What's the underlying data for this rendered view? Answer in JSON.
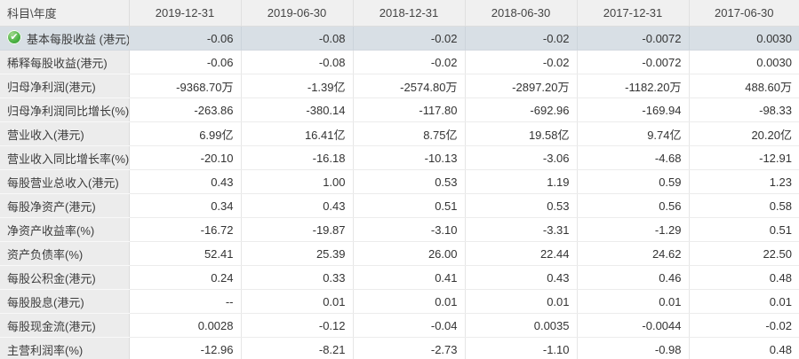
{
  "icons": {
    "check": "✔"
  },
  "colors": {
    "selected_row_bg": "#d8dfe5",
    "label_column_bg": "#ececec",
    "header_bg": "#f0f0f0",
    "check_green": "#4cb244"
  },
  "table": {
    "corner_label": "科目\\年度",
    "columns": [
      "2019-12-31",
      "2019-06-30",
      "2018-12-31",
      "2018-06-30",
      "2017-12-31",
      "2017-06-30"
    ],
    "rows": [
      {
        "label": "基本每股收益 (港元)",
        "selected": true,
        "icon": "check",
        "values": [
          "-0.06",
          "-0.08",
          "-0.02",
          "-0.02",
          "-0.0072",
          "0.0030"
        ]
      },
      {
        "label": "稀释每股收益(港元)",
        "values": [
          "-0.06",
          "-0.08",
          "-0.02",
          "-0.02",
          "-0.0072",
          "0.0030"
        ]
      },
      {
        "label": "归母净利润(港元)",
        "values": [
          "-9368.70万",
          "-1.39亿",
          "-2574.80万",
          "-2897.20万",
          "-1182.20万",
          "488.60万"
        ]
      },
      {
        "label": "归母净利润同比增长(%)",
        "values": [
          "-263.86",
          "-380.14",
          "-117.80",
          "-692.96",
          "-169.94",
          "-98.33"
        ]
      },
      {
        "label": "营业收入(港元)",
        "values": [
          "6.99亿",
          "16.41亿",
          "8.75亿",
          "19.58亿",
          "9.74亿",
          "20.20亿"
        ]
      },
      {
        "label": "营业收入同比增长率(%)",
        "values": [
          "-20.10",
          "-16.18",
          "-10.13",
          "-3.06",
          "-4.68",
          "-12.91"
        ]
      },
      {
        "label": "每股营业总收入(港元)",
        "values": [
          "0.43",
          "1.00",
          "0.53",
          "1.19",
          "0.59",
          "1.23"
        ]
      },
      {
        "label": "每股净资产(港元)",
        "values": [
          "0.34",
          "0.43",
          "0.51",
          "0.53",
          "0.56",
          "0.58"
        ]
      },
      {
        "label": "净资产收益率(%)",
        "values": [
          "-16.72",
          "-19.87",
          "-3.10",
          "-3.31",
          "-1.29",
          "0.51"
        ]
      },
      {
        "label": "资产负债率(%)",
        "values": [
          "52.41",
          "25.39",
          "26.00",
          "22.44",
          "24.62",
          "22.50"
        ]
      },
      {
        "label": "每股公积金(港元)",
        "values": [
          "0.24",
          "0.33",
          "0.41",
          "0.43",
          "0.46",
          "0.48"
        ]
      },
      {
        "label": "每股股息(港元)",
        "values": [
          "--",
          "0.01",
          "0.01",
          "0.01",
          "0.01",
          "0.01"
        ]
      },
      {
        "label": "每股现金流(港元)",
        "values": [
          "0.0028",
          "-0.12",
          "-0.04",
          "0.0035",
          "-0.0044",
          "-0.02"
        ]
      },
      {
        "label": "主营利润率(%)",
        "values": [
          "-12.96",
          "-8.21",
          "-2.73",
          "-1.10",
          "-0.98",
          "0.48"
        ]
      }
    ]
  }
}
